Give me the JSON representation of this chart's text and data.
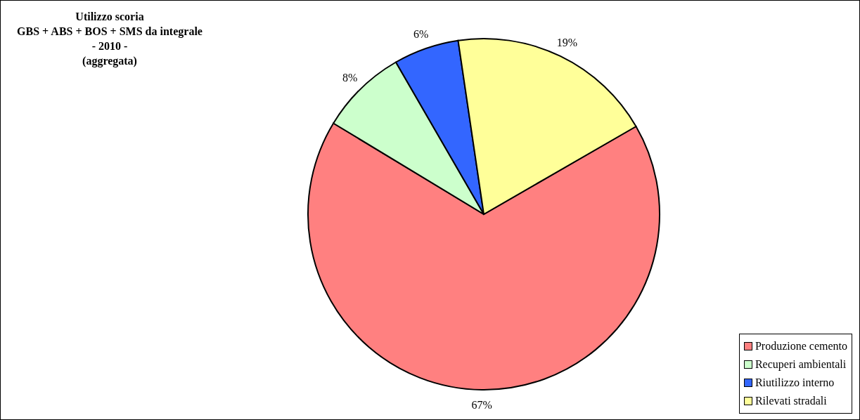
{
  "chart_data": {
    "type": "pie",
    "title": "Utilizzo scoria\nGBS + ABS + BOS + SMS da integrale\n- 2010 -\n(aggregata)",
    "categories": [
      "Produzione cemento",
      "Recuperi ambientali",
      "Riutilizzo interno",
      "Rilevati stradali"
    ],
    "values": [
      67,
      8,
      6,
      19
    ],
    "value_labels": [
      "67%",
      "8%",
      "6%",
      "19%"
    ],
    "colors": [
      "#ff8080",
      "#ccffcc",
      "#3366ff",
      "#ffff99"
    ],
    "legend": "bottom right"
  }
}
